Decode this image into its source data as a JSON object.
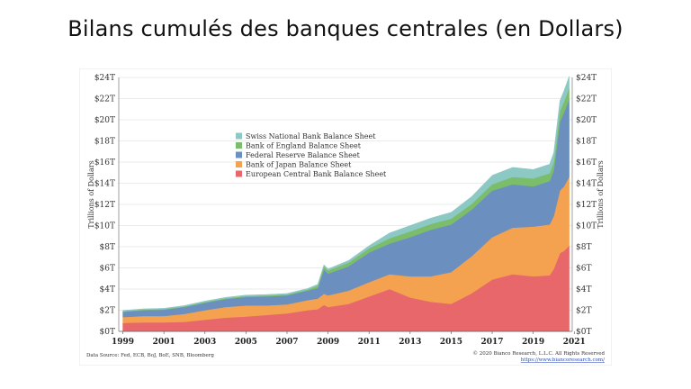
{
  "slide": {
    "title": "Bilans cumulés des banques centrales (en Dollars)"
  },
  "chart_data": {
    "type": "area",
    "stacked": true,
    "ylabel": "Trillions of Dollars",
    "ylim": [
      0,
      24
    ],
    "yticks": [
      "$0T",
      "$2T",
      "$4T",
      "$6T",
      "$8T",
      "$10T",
      "$12T",
      "$14T",
      "$16T",
      "$18T",
      "$20T",
      "$22T",
      "$24T"
    ],
    "xticks": [
      "1999",
      "2001",
      "2003",
      "2005",
      "2007",
      "2009",
      "2011",
      "2013",
      "2015",
      "2017",
      "2019",
      "2021"
    ],
    "xlim": [
      1998.8,
      2020.9
    ],
    "grid": true,
    "legend_position": "top-left",
    "x": [
      1999.0,
      2000.0,
      2001.0,
      2002.0,
      2003.0,
      2004.0,
      2005.0,
      2006.0,
      2007.0,
      2008.0,
      2008.5,
      2008.8,
      2009.0,
      2010.0,
      2011.0,
      2012.0,
      2013.0,
      2014.0,
      2015.0,
      2016.0,
      2017.0,
      2018.0,
      2019.0,
      2019.8,
      2020.0,
      2020.3,
      2020.5,
      2020.75
    ],
    "series": [
      {
        "name": "European Central Bank Balance Sheet",
        "color": "#e8676a",
        "values": [
          0.8,
          0.85,
          0.85,
          0.9,
          1.1,
          1.3,
          1.4,
          1.55,
          1.7,
          2.0,
          2.1,
          2.5,
          2.3,
          2.6,
          3.3,
          4.0,
          3.2,
          2.8,
          2.6,
          3.6,
          4.9,
          5.4,
          5.2,
          5.3,
          5.9,
          7.4,
          7.6,
          8.1
        ]
      },
      {
        "name": "Bank of Japan Balance Sheet",
        "color": "#f5a250",
        "values": [
          0.55,
          0.6,
          0.6,
          0.75,
          0.9,
          1.0,
          1.05,
          0.9,
          0.85,
          0.95,
          1.0,
          1.05,
          1.1,
          1.25,
          1.35,
          1.4,
          2.0,
          2.4,
          3.0,
          3.5,
          4.0,
          4.4,
          4.7,
          4.8,
          5.0,
          5.9,
          6.1,
          6.5
        ]
      },
      {
        "name": "Federal Reserve Balance Sheet",
        "color": "#6b8fbf",
        "values": [
          0.5,
          0.55,
          0.6,
          0.65,
          0.7,
          0.75,
          0.8,
          0.85,
          0.85,
          0.9,
          1.0,
          2.3,
          2.05,
          2.3,
          2.8,
          2.9,
          3.7,
          4.4,
          4.5,
          4.4,
          4.4,
          4.1,
          3.8,
          4.1,
          4.3,
          6.5,
          7.0,
          7.3
        ]
      },
      {
        "name": "Bank of England Balance Sheet",
        "color": "#7bbd6a",
        "values": [
          0.05,
          0.05,
          0.05,
          0.06,
          0.07,
          0.07,
          0.08,
          0.08,
          0.08,
          0.1,
          0.2,
          0.3,
          0.3,
          0.35,
          0.4,
          0.5,
          0.55,
          0.55,
          0.55,
          0.55,
          0.6,
          0.7,
          0.75,
          0.75,
          0.8,
          1.0,
          1.0,
          1.1
        ]
      },
      {
        "name": "Swiss National Bank Balance Sheet",
        "color": "#8cc8c4",
        "values": [
          0.08,
          0.08,
          0.08,
          0.08,
          0.09,
          0.09,
          0.1,
          0.1,
          0.1,
          0.1,
          0.15,
          0.15,
          0.15,
          0.2,
          0.25,
          0.5,
          0.55,
          0.55,
          0.6,
          0.7,
          0.85,
          0.9,
          0.85,
          0.85,
          0.9,
          1.0,
          1.05,
          1.1
        ]
      }
    ]
  },
  "footer": {
    "source": "Data Source: Fed, ECB, BoJ, BoE, SNB, Bloomberg",
    "copyright": "© 2020 Bianco Research, L.L.C. All Rights Reserved",
    "url": "https://www.biancoresearch.com/"
  }
}
